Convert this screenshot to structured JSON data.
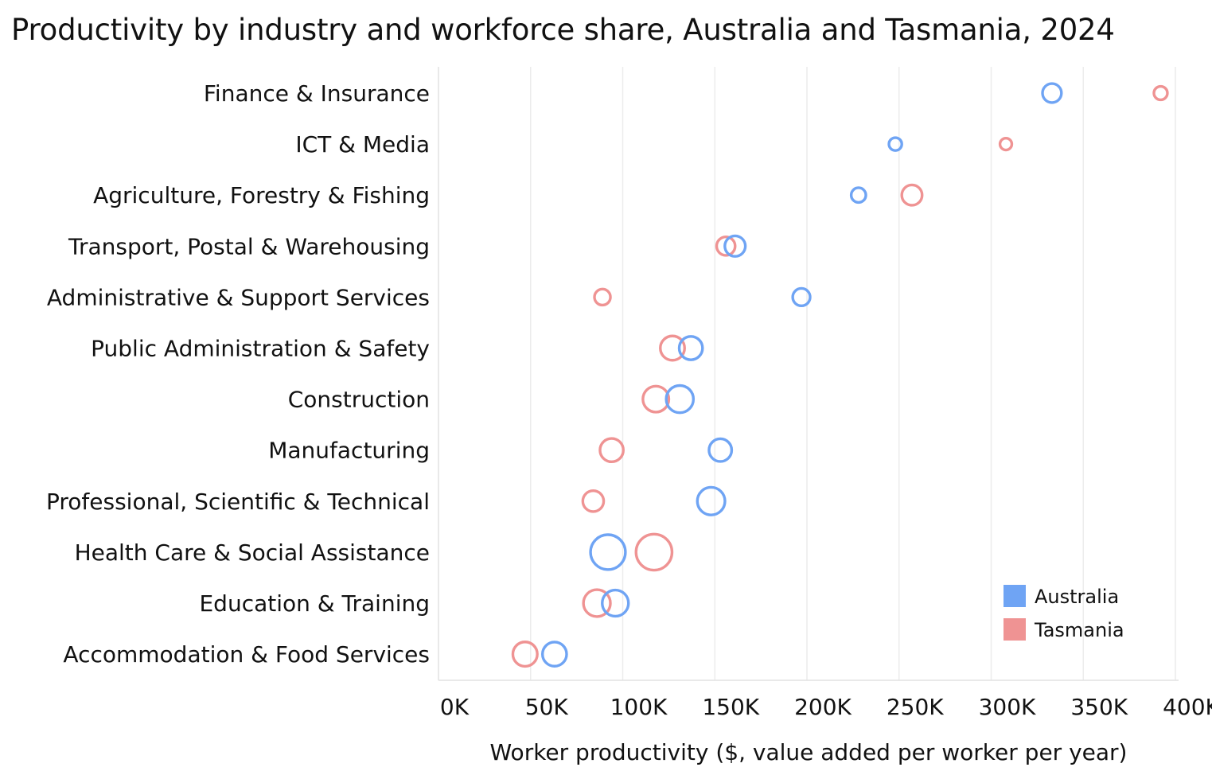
{
  "chart_data": {
    "type": "scatter",
    "title": "Productivity by industry and workforce share, Australia and Tasmania, 2024",
    "xlabel": "Worker productivity ($, value added per worker per year)",
    "xlim": [
      0,
      400000
    ],
    "x_ticks": [
      {
        "value": 0,
        "label": "0K"
      },
      {
        "value": 50000,
        "label": "50K"
      },
      {
        "value": 100000,
        "label": "100K"
      },
      {
        "value": 150000,
        "label": "150K"
      },
      {
        "value": 200000,
        "label": "200K"
      },
      {
        "value": 250000,
        "label": "250K"
      },
      {
        "value": 300000,
        "label": "300K"
      },
      {
        "value": 350000,
        "label": "350K"
      },
      {
        "value": 400000,
        "label": "400K"
      }
    ],
    "grid": true,
    "legend_position": "bottom-right",
    "categories": [
      "Finance & Insurance",
      "ICT & Media",
      "Agriculture, Forestry & Fishing",
      "Transport, Postal & Warehousing",
      "Administrative & Support Services",
      "Public Administration & Safety",
      "Construction",
      "Manufacturing",
      "Professional, Scientific & Technical",
      "Health Care & Social Assistance",
      "Education & Training",
      "Accommodation & Food Services"
    ],
    "series": [
      {
        "name": "Australia",
        "color": "#6FA4F4",
        "values": [
          333000,
          248000,
          228000,
          161000,
          197000,
          137000,
          131000,
          153000,
          148000,
          92000,
          96000,
          63000
        ],
        "workforce_share": [
          4.0,
          1.6,
          2.2,
          4.8,
          3.3,
          6.4,
          9.0,
          6.0,
          9.3,
          15.4,
          8.3,
          6.9
        ]
      },
      {
        "name": "Tasmania",
        "color": "#EF9393",
        "values": [
          392000,
          308000,
          257000,
          156000,
          89000,
          127000,
          118000,
          94000,
          84000,
          117000,
          86000,
          47000
        ],
        "workforce_share": [
          1.8,
          1.3,
          4.7,
          3.8,
          2.7,
          7.0,
          8.1,
          6.4,
          5.0,
          16.5,
          8.8,
          7.1
        ]
      }
    ]
  }
}
